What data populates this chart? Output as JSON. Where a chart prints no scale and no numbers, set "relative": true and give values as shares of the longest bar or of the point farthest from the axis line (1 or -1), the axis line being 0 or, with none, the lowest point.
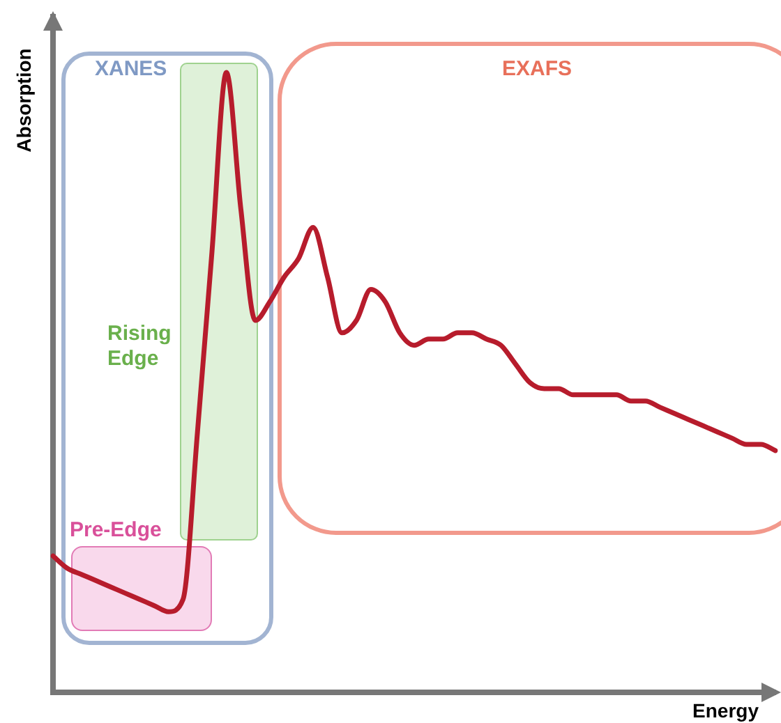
{
  "chart_data": {
    "type": "line",
    "xlabel": "Energy",
    "ylabel": "Absorption",
    "relative": true,
    "marker": "none",
    "categories": [
      null,
      null,
      null,
      null,
      null,
      null,
      null,
      null,
      null,
      null,
      null,
      null,
      null,
      null,
      null,
      null,
      null,
      null,
      null,
      null,
      null,
      null,
      null,
      null,
      null,
      null,
      null,
      null,
      null,
      null,
      null,
      null,
      null,
      null,
      null,
      null,
      null,
      null,
      null,
      null,
      null,
      null,
      null,
      null,
      null,
      null,
      null,
      null,
      null,
      null,
      null
    ],
    "series": [
      {
        "color": "#b71c2c",
        "values": [
          0.22,
          0.2,
          0.19,
          0.18,
          0.17,
          0.16,
          0.15,
          0.14,
          0.13,
          0.15,
          0.42,
          0.71,
          1,
          0.78,
          0.6,
          0.63,
          0.67,
          0.7,
          0.75,
          0.67,
          0.58,
          0.6,
          0.65,
          0.63,
          0.58,
          0.56,
          0.57,
          0.57,
          0.58,
          0.58,
          0.57,
          0.56,
          0.53,
          0.5,
          0.49,
          0.49,
          0.48,
          0.48,
          0.48,
          0.48,
          0.47,
          0.47,
          0.46,
          0.45,
          0.44,
          0.43,
          0.42,
          0.41,
          0.4,
          0.4,
          0.39
        ]
      }
    ],
    "annotations": [
      "XANES",
      "EXAFS",
      "Rising Edge",
      "Pre-Edge"
    ]
  }
}
